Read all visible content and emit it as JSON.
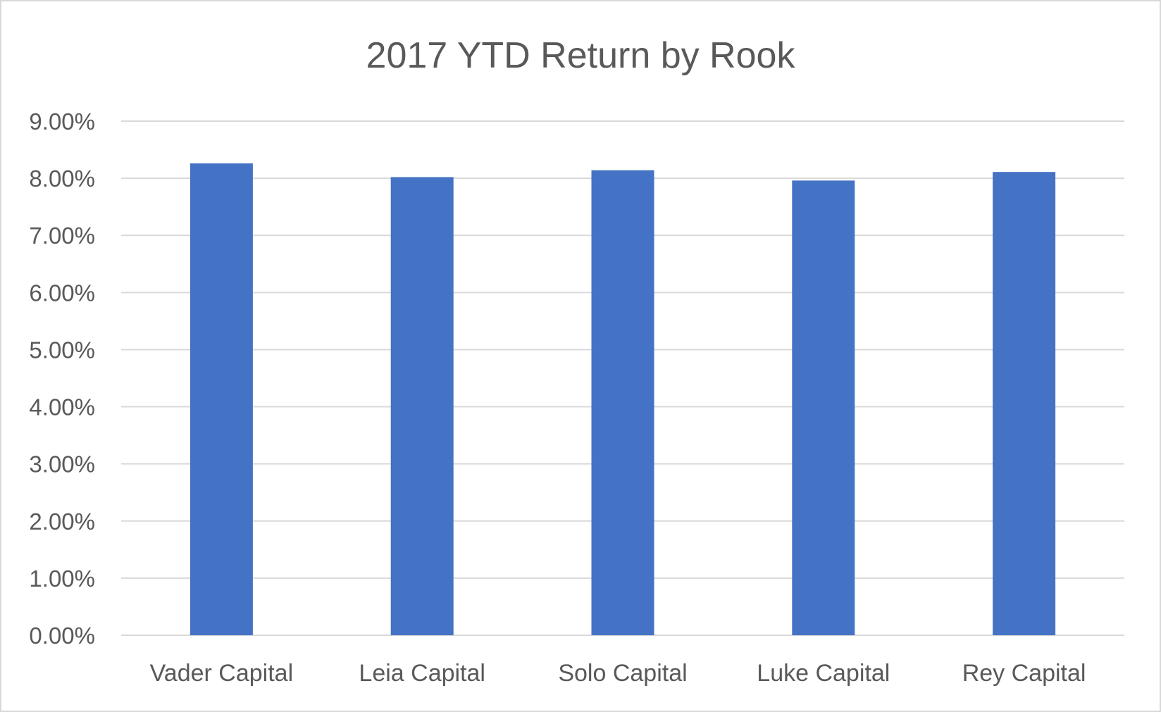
{
  "chart_data": {
    "type": "bar",
    "title": "2017 YTD Return by Rook",
    "categories": [
      "Vader Capital",
      "Leia Capital",
      "Solo Capital",
      "Luke Capital",
      "Rey Capital"
    ],
    "values": [
      8.26,
      8.02,
      8.14,
      7.96,
      8.11
    ],
    "value_unit": "%",
    "ylim": [
      0,
      9
    ],
    "y_ticks": [
      "0.00%",
      "1.00%",
      "2.00%",
      "3.00%",
      "4.00%",
      "5.00%",
      "6.00%",
      "7.00%",
      "8.00%",
      "9.00%"
    ],
    "xlabel": "",
    "ylabel": "",
    "grid": true,
    "legend": "none",
    "bar_color": "#4472c4"
  }
}
